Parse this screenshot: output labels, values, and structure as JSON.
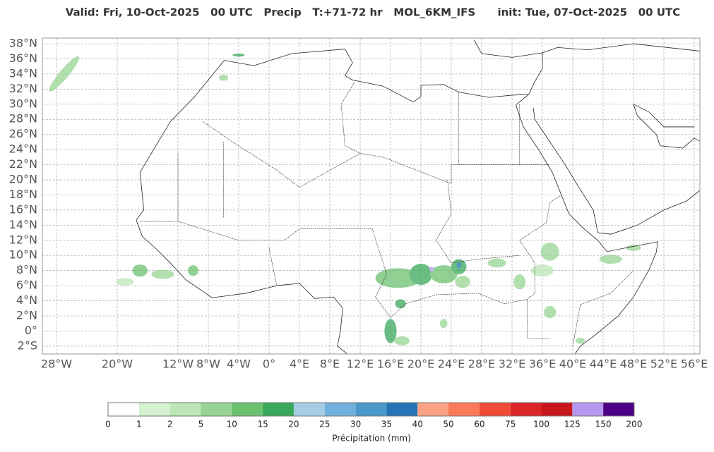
{
  "header": {
    "title": "Valid: Fri, 10-Oct-2025   00 UTC   Precip   T:+71-72 hr   MOL_6KM_IFS      init: Tue, 07-Oct-2025   00 UTC"
  },
  "map": {
    "lat_ticks": [
      {
        "value": 38,
        "label": "38°N"
      },
      {
        "value": 36,
        "label": "36°N"
      },
      {
        "value": 34,
        "label": "34°N"
      },
      {
        "value": 32,
        "label": "32°N"
      },
      {
        "value": 30,
        "label": "30°N"
      },
      {
        "value": 28,
        "label": "28°N"
      },
      {
        "value": 26,
        "label": "26°N"
      },
      {
        "value": 24,
        "label": "24°N"
      },
      {
        "value": 22,
        "label": "22°N"
      },
      {
        "value": 20,
        "label": "20°N"
      },
      {
        "value": 18,
        "label": "18°N"
      },
      {
        "value": 16,
        "label": "16°N"
      },
      {
        "value": 14,
        "label": "14°N"
      },
      {
        "value": 12,
        "label": "12°N"
      },
      {
        "value": 10,
        "label": "10°N"
      },
      {
        "value": 8,
        "label": "8°N"
      },
      {
        "value": 6,
        "label": "6°N"
      },
      {
        "value": 4,
        "label": "4°N"
      },
      {
        "value": 2,
        "label": "2°N"
      },
      {
        "value": 0,
        "label": "0°"
      },
      {
        "value": -2,
        "label": "2°S"
      }
    ],
    "lon_ticks": [
      {
        "value": -28,
        "label": "28°W"
      },
      {
        "value": -20,
        "label": "20°W"
      },
      {
        "value": -12,
        "label": "12°W"
      },
      {
        "value": -8,
        "label": "8°W"
      },
      {
        "value": -4,
        "label": "4°W"
      },
      {
        "value": 0,
        "label": "0°"
      },
      {
        "value": 4,
        "label": "4°E"
      },
      {
        "value": 8,
        "label": "8°E"
      },
      {
        "value": 12,
        "label": "12°E"
      },
      {
        "value": 16,
        "label": "16°E"
      },
      {
        "value": 20,
        "label": "20°E"
      },
      {
        "value": 24,
        "label": "24°E"
      },
      {
        "value": 28,
        "label": "28°E"
      },
      {
        "value": 32,
        "label": "32°E"
      },
      {
        "value": 36,
        "label": "36°E"
      },
      {
        "value": 40,
        "label": "40°E"
      },
      {
        "value": 44,
        "label": "44°E"
      },
      {
        "value": 48,
        "label": "48°E"
      },
      {
        "value": 52,
        "label": "52°E"
      },
      {
        "value": 56,
        "label": "56°E"
      }
    ]
  },
  "colorbar": {
    "bounds": [
      0,
      1,
      2,
      5,
      10,
      15,
      20,
      25,
      30,
      35,
      40,
      50,
      60,
      75,
      100,
      125,
      150,
      200
    ],
    "colors": [
      "#ffffff",
      "#d4f2d2",
      "#bde6b7",
      "#98d594",
      "#6cc16f",
      "#3aa85a",
      "#a6cde3",
      "#70b0da",
      "#4a98c9",
      "#2473b5",
      "#fca184",
      "#fb7a5a",
      "#f14a36",
      "#db2526",
      "#c8171c",
      "#b597f0",
      "#4b0085"
    ],
    "label": "Précipitation (mm)"
  }
}
